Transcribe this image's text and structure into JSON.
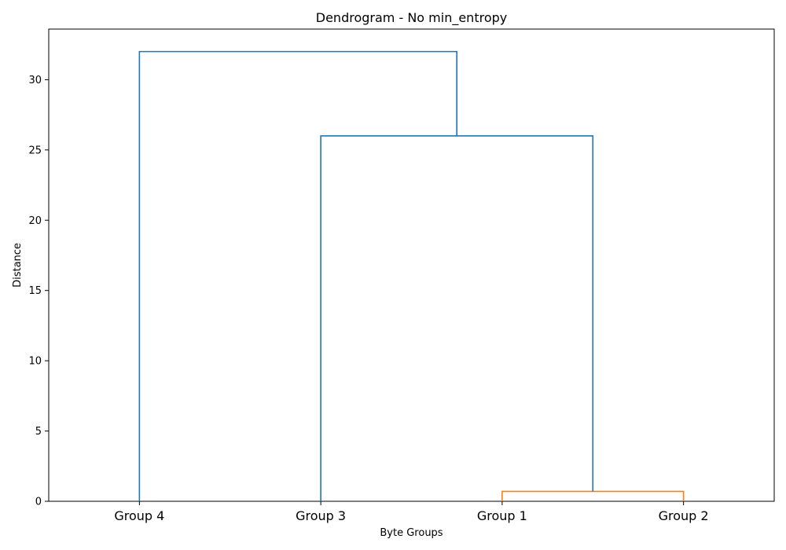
{
  "chart_data": {
    "type": "dendrogram",
    "title": "Dendrogram - No min_entropy",
    "xlabel": "Byte Groups",
    "ylabel": "Distance",
    "leaves": [
      "Group 4",
      "Group 3",
      "Group 1",
      "Group 2"
    ],
    "ylim": [
      0,
      33.6
    ],
    "yticks": [
      0,
      5,
      10,
      15,
      20,
      25,
      30
    ],
    "grid": false,
    "links": [
      {
        "left": "Group 1",
        "right": "Group 2",
        "height": 0.7,
        "color": "#ff7f0e"
      },
      {
        "left": "Group 3",
        "right": "cluster(Group 1, Group 2)",
        "height": 26,
        "color": "#1f77b4"
      },
      {
        "left": "Group 4",
        "right": "cluster(Group 3, Group 1, Group 2)",
        "height": 32,
        "color": "#1f77b4"
      }
    ]
  }
}
